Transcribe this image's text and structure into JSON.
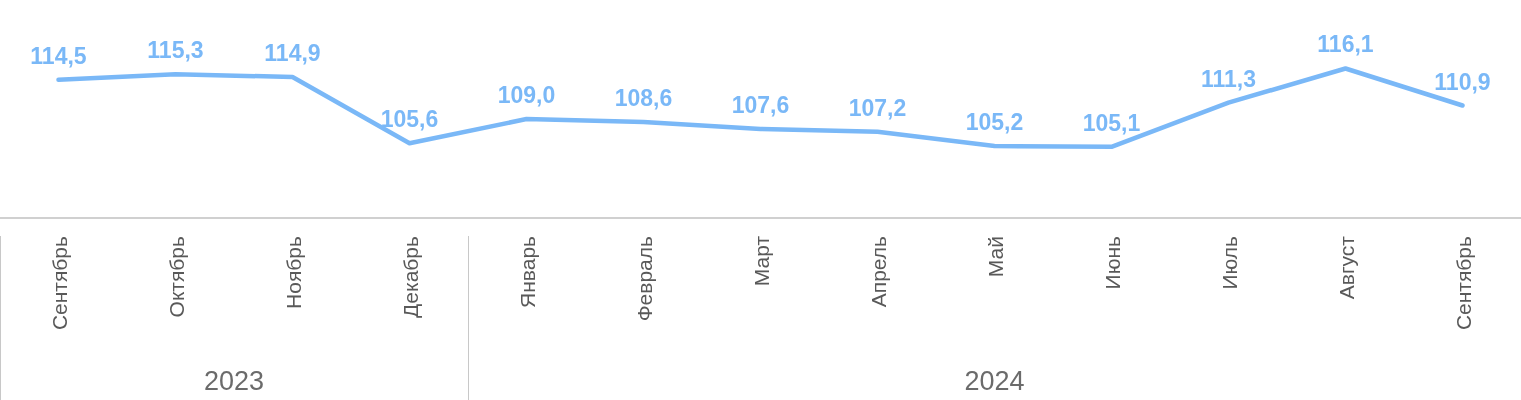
{
  "chart_data": {
    "type": "line",
    "categories": [
      "Сентябрь",
      "Октябрь",
      "Ноябрь",
      "Декабрь",
      "Январь",
      "Февраль",
      "Март",
      "Апрель",
      "Май",
      "Июнь",
      "Июль",
      "Август",
      "Сентябрь"
    ],
    "series": [
      {
        "color": "#7ab8f7",
        "values": [
          114.5,
          115.3,
          114.9,
          105.6,
          109.0,
          108.6,
          107.6,
          107.2,
          105.2,
          105.1,
          111.3,
          116.1,
          110.9
        ],
        "value_labels": [
          "114,5",
          "115,3",
          "114,9",
          "105,6",
          "109,0",
          "108,6",
          "107,6",
          "107,2",
          "105,2",
          "105,1",
          "111,3",
          "116,1",
          "110,9"
        ]
      }
    ],
    "marker": "none",
    "tick_labels": "x",
    "annotations": [
      "2023",
      "2024"
    ]
  }
}
